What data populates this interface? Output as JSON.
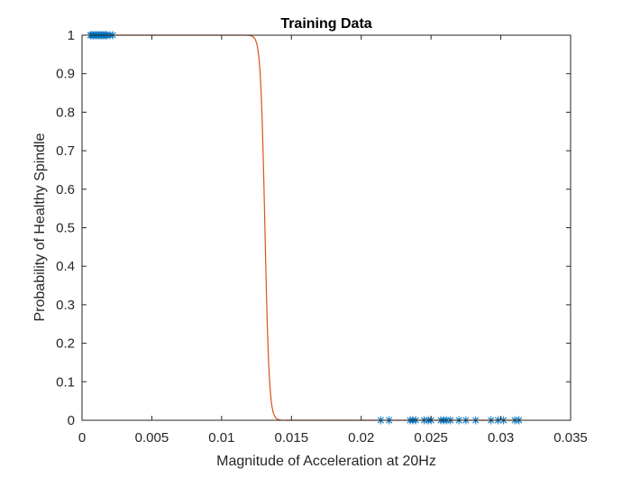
{
  "chart_data": {
    "type": "scatter",
    "title": "Training Data",
    "xlabel": "Magnitude of Acceleration at 20Hz",
    "ylabel": "Probability of Healthy Spindle",
    "xlim": [
      0,
      0.035
    ],
    "ylim": [
      0,
      1
    ],
    "xticks": [
      0,
      0.005,
      0.01,
      0.015,
      0.02,
      0.025,
      0.03,
      0.035
    ],
    "xtick_labels": [
      "0",
      "0.005",
      "0.01",
      "0.015",
      "0.02",
      "0.025",
      "0.03",
      "0.035"
    ],
    "yticks": [
      0,
      0.1,
      0.2,
      0.3,
      0.4,
      0.5,
      0.6,
      0.7,
      0.8,
      0.9,
      1
    ],
    "ytick_labels": [
      "0",
      "0.1",
      "0.2",
      "0.3",
      "0.4",
      "0.5",
      "0.6",
      "0.7",
      "0.8",
      "0.9",
      "1"
    ],
    "grid": false,
    "series": [
      {
        "kind": "scatter",
        "marker": "asterisk",
        "color": "#0072BD",
        "points": [
          [
            0.0006,
            1
          ],
          [
            0.0007,
            1
          ],
          [
            0.0008,
            1
          ],
          [
            0.0009,
            1
          ],
          [
            0.001,
            1
          ],
          [
            0.0011,
            1
          ],
          [
            0.0012,
            1
          ],
          [
            0.0013,
            1
          ],
          [
            0.0014,
            1
          ],
          [
            0.0015,
            1
          ],
          [
            0.0016,
            1
          ],
          [
            0.0017,
            1
          ],
          [
            0.0018,
            1
          ],
          [
            0.002,
            1
          ],
          [
            0.0022,
            1
          ],
          [
            0.0214,
            0
          ],
          [
            0.022,
            0
          ],
          [
            0.0235,
            0
          ],
          [
            0.0237,
            0
          ],
          [
            0.0239,
            0
          ],
          [
            0.0245,
            0
          ],
          [
            0.0248,
            0
          ],
          [
            0.025,
            0
          ],
          [
            0.0257,
            0
          ],
          [
            0.0259,
            0
          ],
          [
            0.0261,
            0
          ],
          [
            0.0264,
            0
          ],
          [
            0.027,
            0
          ],
          [
            0.0275,
            0
          ],
          [
            0.0282,
            0
          ],
          [
            0.0293,
            0
          ],
          [
            0.0298,
            0
          ],
          [
            0.0302,
            0
          ],
          [
            0.031,
            0
          ],
          [
            0.0313,
            0
          ]
        ]
      },
      {
        "kind": "line",
        "color": "#D95319",
        "model": "logistic",
        "midpoint": 0.0131,
        "steepness": 6500,
        "x_range": [
          0.0005,
          0.0315
        ]
      }
    ]
  }
}
